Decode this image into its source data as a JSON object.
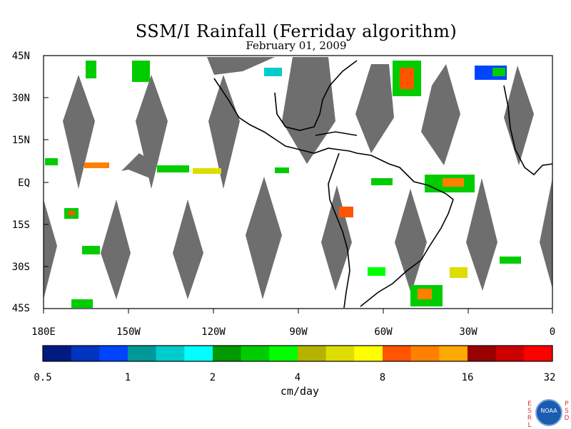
{
  "header": {
    "title": "SSM/I Rainfall (Ferriday algorithm)",
    "date": "February 01, 2009"
  },
  "map": {
    "lat_labels": [
      "45N",
      "30N",
      "15N",
      "EQ",
      "15S",
      "30S",
      "45S"
    ],
    "lon_labels": [
      "180E",
      "150W",
      "120W",
      "90W",
      "60W",
      "30W",
      "0"
    ],
    "lat_range": [
      -45,
      45
    ],
    "lon_range": [
      -180,
      0
    ],
    "no_data_color": "#6e6e6e",
    "coastline_color": "#000000"
  },
  "colorbar": {
    "colors": [
      "#001a80",
      "#0033c0",
      "#0044ff",
      "#009999",
      "#00cccc",
      "#00ffff",
      "#009900",
      "#00cc00",
      "#00ff00",
      "#b3b300",
      "#dddd00",
      "#ffff00",
      "#ff5500",
      "#ff8000",
      "#ffaa00",
      "#990000",
      "#cc0000",
      "#ff0000"
    ],
    "tick_labels": [
      "0.5",
      "1",
      "2",
      "4",
      "8",
      "16",
      "32"
    ],
    "unit": "cm/day"
  },
  "logo": {
    "left_letters": "ESRL",
    "right_letters": "PSD",
    "center_text": "NOAA"
  }
}
